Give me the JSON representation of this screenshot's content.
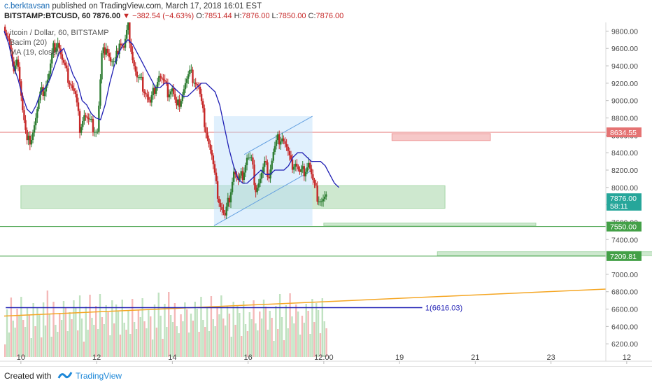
{
  "header": {
    "author": "c.berktavsan",
    "published_text": "published on TradingView.com, March 17, 2018 16:01 EST",
    "symbol": "BITSTAMP:BTCUSD, 60",
    "last": "7876.00",
    "change": "▼ −382.54 (−4.63%)",
    "open_label": "O:",
    "open": "7851.44",
    "high_label": "H:",
    "high": "7876.00",
    "low_label": "L:",
    "low": "7850.00",
    "close_label": "C:",
    "close": "7876.00"
  },
  "legend": {
    "title": "itcoin / Dollar, 60, BITSTAMP",
    "line2": "Bacim (20)",
    "line3": "MA (19, close)"
  },
  "footer": {
    "created": "Created with",
    "brand": "TradingView"
  },
  "colors": {
    "up": "#26a69a",
    "up_body": "#2e7d32",
    "down": "#c62828",
    "ma": "#1f1fb4",
    "green_zone": "#a5d6a7",
    "red_zone": "#ef9a9a",
    "channel": "#bbdefb",
    "orange": "#f5a623"
  },
  "chart_data": {
    "type": "candlestick",
    "ylim": [
      6000,
      9900
    ],
    "y_ticks": [
      "9800.00",
      "9600.00",
      "9400.00",
      "9200.00",
      "9000.00",
      "8800.00",
      "8600.00",
      "8400.00",
      "8200.00",
      "8000.00",
      "7800.00",
      "7600.00",
      "7400.00",
      "7200.00",
      "7000.00",
      "6800.00",
      "6600.00",
      "6400.00",
      "6200.00"
    ],
    "x_ticks": [
      "10",
      "12",
      "14",
      "16",
      "12:00",
      "19",
      "21",
      "23",
      "12"
    ],
    "price_labels": [
      {
        "text": "8634.55",
        "value": 8634.55,
        "color": "#e57373"
      },
      {
        "text": "7876.00",
        "value": 7876,
        "color": "#26a69a"
      },
      {
        "text": "58:11",
        "value": 7790,
        "color": "#26a69a"
      },
      {
        "text": "7550.00",
        "value": 7550,
        "color": "#43a047"
      },
      {
        "text": "7209.81",
        "value": 7209.81,
        "color": "#43a047"
      }
    ],
    "horizontal_lines": [
      {
        "value": 8634.55,
        "color": "#e57373"
      },
      {
        "value": 7550,
        "color": "#43a047"
      },
      {
        "value": 7209.81,
        "color": "#43a047"
      }
    ],
    "zones": [
      {
        "x0": 0.0,
        "x1": 5.6,
        "y0": 7760,
        "y1": 8020,
        "color": "green"
      },
      {
        "x0": 4.9,
        "x1": 6.2,
        "y0": 8540,
        "y1": 8620,
        "color": "red"
      },
      {
        "x0": 4.0,
        "x1": 6.8,
        "y0": 7560,
        "y1": 7590,
        "color": "green"
      },
      {
        "x0": 5.5,
        "x1": 8.5,
        "y0": 7215,
        "y1": 7260,
        "color": "green"
      }
    ],
    "annotation": {
      "text": "1(6616.03)",
      "value": 6616.03
    },
    "price_path": [
      9850,
      9700,
      9300,
      9450,
      8900,
      8500,
      8600,
      8800,
      9050,
      9150,
      9300,
      9600,
      9700,
      9450,
      9300,
      9200,
      9050,
      8700,
      8850,
      8750,
      8700,
      8650,
      9500,
      9650,
      9450,
      9400,
      9700,
      9600,
      9850,
      9500,
      9250,
      9200,
      9100,
      8950,
      9150,
      9300,
      9200,
      9100,
      9150,
      8900,
      9050,
      9200,
      9300,
      9250,
      9150,
      8850,
      8600,
      8350,
      8000,
      7800,
      7650,
      7900,
      8200,
      8050,
      8150,
      8350,
      8300,
      8000,
      8100,
      8250,
      8150,
      8400,
      8550,
      8600,
      8450,
      8250,
      8300,
      8150,
      8200,
      8300,
      8050,
      7900,
      7850,
      7876
    ],
    "ma_path": [
      9800,
      9650,
      9400,
      9250,
      9050,
      8900,
      8850,
      8950,
      9100,
      9150,
      9250,
      9400,
      9550,
      9600,
      9450,
      9300,
      9200,
      9000,
      8950,
      8850,
      8800,
      8780,
      8950,
      9200,
      9400,
      9550,
      9650,
      9700,
      9650,
      9550,
      9450,
      9350,
      9250,
      9150,
      9150,
      9200,
      9200,
      9150,
      9100,
      9050,
      9050,
      9100,
      9150,
      9200,
      9200,
      9150,
      9100,
      8950,
      8700,
      8450,
      8250,
      8100,
      8050,
      8050,
      8100,
      8150,
      8200,
      8150,
      8150,
      8200,
      8200,
      8200,
      8250,
      8350,
      8400,
      8400,
      8350,
      8300,
      8300,
      8300,
      8250,
      8150,
      8050,
      8000
    ]
  }
}
